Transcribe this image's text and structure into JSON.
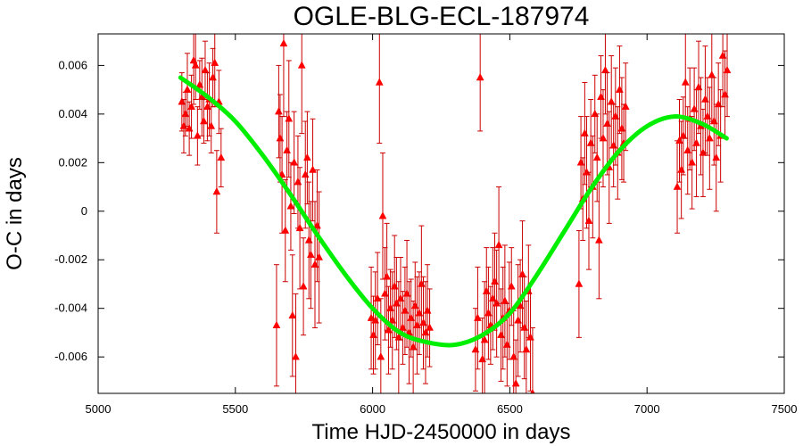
{
  "chart_data": {
    "type": "scatter",
    "title": "OGLE-BLG-ECL-187974",
    "xlabel": "Time HJD-2450000 in days",
    "ylabel": "O-C in days",
    "xlim": [
      5000,
      7500
    ],
    "ylim": [
      -0.0075,
      0.0073
    ],
    "x_ticks": [
      5000,
      5500,
      6000,
      6500,
      7000,
      7500
    ],
    "x_tick_labels": [
      "5000",
      "5500",
      "6000",
      "6500",
      "7000",
      "7500"
    ],
    "y_ticks": [
      -0.006,
      -0.004,
      -0.002,
      0,
      0.002,
      0.004,
      0.006
    ],
    "y_tick_labels": [
      "-0.006",
      "-0.004",
      "-0.002",
      "0",
      "0.002",
      "0.004",
      "0.006"
    ],
    "grid": false,
    "colors": {
      "points": "#ff0000",
      "errorbars": "#cc0000",
      "fit": "#00ee00"
    },
    "series": [
      {
        "kind": "points-with-error-bars",
        "marker": "triangle",
        "points": [
          {
            "x": 5305,
            "y": 0.0045,
            "err": 0.0012
          },
          {
            "x": 5312,
            "y": 0.0035,
            "err": 0.0011
          },
          {
            "x": 5318,
            "y": 0.004,
            "err": 0.0009
          },
          {
            "x": 5325,
            "y": 0.005,
            "err": 0.0015
          },
          {
            "x": 5332,
            "y": 0.0034,
            "err": 0.0011
          },
          {
            "x": 5340,
            "y": 0.0043,
            "err": 0.0013
          },
          {
            "x": 5348,
            "y": 0.0062,
            "err": 0.0018
          },
          {
            "x": 5355,
            "y": 0.006,
            "err": 0.0014
          },
          {
            "x": 5362,
            "y": 0.0031,
            "err": 0.0012
          },
          {
            "x": 5370,
            "y": 0.0052,
            "err": 0.001
          },
          {
            "x": 5378,
            "y": 0.0047,
            "err": 0.0016
          },
          {
            "x": 5385,
            "y": 0.0037,
            "err": 0.0009
          },
          {
            "x": 5390,
            "y": 0.0058,
            "err": 0.0012
          },
          {
            "x": 5398,
            "y": 0.0043,
            "err": 0.0014
          },
          {
            "x": 5405,
            "y": 0.0046,
            "err": 0.0015
          },
          {
            "x": 5412,
            "y": 0.0035,
            "err": 0.0011
          },
          {
            "x": 5418,
            "y": 0.0055,
            "err": 0.0012
          },
          {
            "x": 5425,
            "y": 0.0061,
            "err": 0.0018
          },
          {
            "x": 5432,
            "y": 0.0008,
            "err": 0.0017
          },
          {
            "x": 5440,
            "y": 0.0045,
            "err": 0.0013
          },
          {
            "x": 5448,
            "y": 0.0022,
            "err": 0.0012
          },
          {
            "x": 5650,
            "y": -0.0047,
            "err": 0.0025
          },
          {
            "x": 5658,
            "y": 0.0041,
            "err": 0.0019
          },
          {
            "x": 5663,
            "y": 0.003,
            "err": 0.0018
          },
          {
            "x": 5670,
            "y": 0.0015,
            "err": 0.0024
          },
          {
            "x": 5676,
            "y": 0.0069,
            "err": 0.003
          },
          {
            "x": 5682,
            "y": -0.0008,
            "err": 0.0021
          },
          {
            "x": 5688,
            "y": 0.0025,
            "err": 0.0016
          },
          {
            "x": 5695,
            "y": 0.0038,
            "err": 0.0024
          },
          {
            "x": 5702,
            "y": 0.0002,
            "err": 0.0018
          },
          {
            "x": 5708,
            "y": -0.0043,
            "err": 0.0025
          },
          {
            "x": 5714,
            "y": 0.002,
            "err": 0.0021
          },
          {
            "x": 5720,
            "y": -0.006,
            "err": 0.0026
          },
          {
            "x": 5728,
            "y": 0.0012,
            "err": 0.0019
          },
          {
            "x": 5735,
            "y": -0.0007,
            "err": 0.0025
          },
          {
            "x": 5742,
            "y": 0.006,
            "err": 0.0028
          },
          {
            "x": 5748,
            "y": -0.0031,
            "err": 0.002
          },
          {
            "x": 5755,
            "y": 0.0015,
            "err": 0.0022
          },
          {
            "x": 5762,
            "y": 0.0022,
            "err": 0.0019
          },
          {
            "x": 5768,
            "y": -0.0012,
            "err": 0.0024
          },
          {
            "x": 5775,
            "y": -0.0018,
            "err": 0.0022
          },
          {
            "x": 5782,
            "y": 0.0017,
            "err": 0.0021
          },
          {
            "x": 5790,
            "y": -0.0022,
            "err": 0.0026
          },
          {
            "x": 5798,
            "y": -0.0006,
            "err": 0.0023
          },
          {
            "x": 5805,
            "y": -0.0019,
            "err": 0.0027
          },
          {
            "x": 5995,
            "y": -0.0044,
            "err": 0.0021
          },
          {
            "x": 6003,
            "y": -0.0051,
            "err": 0.0016
          },
          {
            "x": 6010,
            "y": -0.0045,
            "err": 0.002
          },
          {
            "x": 6018,
            "y": -0.0036,
            "err": 0.0019
          },
          {
            "x": 6025,
            "y": 0.0053,
            "err": 0.0025
          },
          {
            "x": 6030,
            "y": -0.006,
            "err": 0.0024
          },
          {
            "x": 6037,
            "y": -0.0002,
            "err": 0.0026
          },
          {
            "x": 6045,
            "y": -0.0034,
            "err": 0.0019
          },
          {
            "x": 6052,
            "y": -0.0027,
            "err": 0.0022
          },
          {
            "x": 6058,
            "y": -0.0049,
            "err": 0.0018
          },
          {
            "x": 6065,
            "y": -0.004,
            "err": 0.0016
          },
          {
            "x": 6072,
            "y": -0.0045,
            "err": 0.002
          },
          {
            "x": 6080,
            "y": -0.0031,
            "err": 0.0021
          },
          {
            "x": 6087,
            "y": -0.0038,
            "err": 0.0019
          },
          {
            "x": 6095,
            "y": -0.0052,
            "err": 0.0023
          },
          {
            "x": 6102,
            "y": -0.0036,
            "err": 0.0017
          },
          {
            "x": 6110,
            "y": -0.0048,
            "err": 0.0015
          },
          {
            "x": 6118,
            "y": -0.0041,
            "err": 0.0018
          },
          {
            "x": 6125,
            "y": -0.0034,
            "err": 0.0022
          },
          {
            "x": 6133,
            "y": -0.005,
            "err": 0.0021
          },
          {
            "x": 6140,
            "y": -0.0044,
            "err": 0.0016
          },
          {
            "x": 6148,
            "y": -0.0056,
            "err": 0.0019
          },
          {
            "x": 6155,
            "y": -0.0039,
            "err": 0.0018
          },
          {
            "x": 6162,
            "y": -0.0047,
            "err": 0.002
          },
          {
            "x": 6170,
            "y": -0.0042,
            "err": 0.0017
          },
          {
            "x": 6178,
            "y": -0.003,
            "err": 0.0024
          },
          {
            "x": 6185,
            "y": -0.0046,
            "err": 0.0019
          },
          {
            "x": 6193,
            "y": -0.005,
            "err": 0.0021
          },
          {
            "x": 6200,
            "y": -0.0041,
            "err": 0.0019
          },
          {
            "x": 6208,
            "y": -0.0048,
            "err": 0.0016
          },
          {
            "x": 6375,
            "y": -0.0057,
            "err": 0.0017
          },
          {
            "x": 6383,
            "y": -0.0044,
            "err": 0.0021
          },
          {
            "x": 6392,
            "y": 0.0055,
            "err": 0.0022
          },
          {
            "x": 6400,
            "y": -0.0061,
            "err": 0.0017
          },
          {
            "x": 6408,
            "y": -0.0053,
            "err": 0.0024
          },
          {
            "x": 6415,
            "y": -0.0033,
            "err": 0.0018
          },
          {
            "x": 6422,
            "y": -0.0042,
            "err": 0.0019
          },
          {
            "x": 6430,
            "y": -0.0047,
            "err": 0.0016
          },
          {
            "x": 6438,
            "y": -0.0036,
            "err": 0.0021
          },
          {
            "x": 6445,
            "y": -0.0029,
            "err": 0.002
          },
          {
            "x": 6452,
            "y": -0.0038,
            "err": 0.0022
          },
          {
            "x": 6460,
            "y": -0.0014,
            "err": 0.0024
          },
          {
            "x": 6468,
            "y": -0.0051,
            "err": 0.0019
          },
          {
            "x": 6475,
            "y": -0.0044,
            "err": 0.0021
          },
          {
            "x": 6482,
            "y": -0.0037,
            "err": 0.0023
          },
          {
            "x": 6490,
            "y": -0.0055,
            "err": 0.0017
          },
          {
            "x": 6498,
            "y": -0.0041,
            "err": 0.002
          },
          {
            "x": 6506,
            "y": -0.0031,
            "err": 0.0016
          },
          {
            "x": 6514,
            "y": -0.006,
            "err": 0.0019
          },
          {
            "x": 6522,
            "y": -0.0071,
            "err": 0.0018
          },
          {
            "x": 6530,
            "y": -0.0045,
            "err": 0.0023
          },
          {
            "x": 6538,
            "y": -0.0039,
            "err": 0.0019
          },
          {
            "x": 6546,
            "y": -0.0026,
            "err": 0.0022
          },
          {
            "x": 6553,
            "y": -0.0048,
            "err": 0.0021
          },
          {
            "x": 6560,
            "y": -0.0057,
            "err": 0.002
          },
          {
            "x": 6568,
            "y": -0.0033,
            "err": 0.0019
          },
          {
            "x": 6575,
            "y": -0.0052,
            "err": 0.0022
          },
          {
            "x": 6583,
            "y": -0.0075,
            "err": 0.0027
          },
          {
            "x": 6752,
            "y": -0.003,
            "err": 0.0022
          },
          {
            "x": 6759,
            "y": 0.002,
            "err": 0.0019
          },
          {
            "x": 6766,
            "y": 0.0005,
            "err": 0.0017
          },
          {
            "x": 6773,
            "y": 0.0032,
            "err": 0.0021
          },
          {
            "x": 6780,
            "y": 0.0016,
            "err": 0.0023
          },
          {
            "x": 6788,
            "y": -0.0004,
            "err": 0.002
          },
          {
            "x": 6795,
            "y": 0.0028,
            "err": 0.0018
          },
          {
            "x": 6802,
            "y": 0.001,
            "err": 0.0021
          },
          {
            "x": 6810,
            "y": 0.004,
            "err": 0.0016
          },
          {
            "x": 6818,
            "y": 0.0022,
            "err": 0.0018
          },
          {
            "x": 6825,
            "y": -0.0012,
            "err": 0.0024
          },
          {
            "x": 6832,
            "y": 0.0047,
            "err": 0.0017
          },
          {
            "x": 6840,
            "y": 0.003,
            "err": 0.002
          },
          {
            "x": 6848,
            "y": 0.0058,
            "err": 0.0018
          },
          {
            "x": 6855,
            "y": 0.0036,
            "err": 0.0021
          },
          {
            "x": 6862,
            "y": 0.0018,
            "err": 0.0023
          },
          {
            "x": 6870,
            "y": 0.0045,
            "err": 0.0019
          },
          {
            "x": 6878,
            "y": 0.0027,
            "err": 0.0017
          },
          {
            "x": 6885,
            "y": 0.0039,
            "err": 0.002
          },
          {
            "x": 6893,
            "y": 0.0024,
            "err": 0.0019
          },
          {
            "x": 6900,
            "y": 0.005,
            "err": 0.0018
          },
          {
            "x": 6908,
            "y": 0.0034,
            "err": 0.0021
          },
          {
            "x": 6915,
            "y": 0.0028,
            "err": 0.0016
          },
          {
            "x": 6922,
            "y": 0.0043,
            "err": 0.0018
          },
          {
            "x": 7110,
            "y": 0.001,
            "err": 0.0019
          },
          {
            "x": 7118,
            "y": 0.0029,
            "err": 0.0017
          },
          {
            "x": 7125,
            "y": 0.0017,
            "err": 0.002
          },
          {
            "x": 7132,
            "y": 0.0031,
            "err": 0.0016
          },
          {
            "x": 7140,
            "y": 0.0053,
            "err": 0.0023
          },
          {
            "x": 7148,
            "y": 0.0025,
            "err": 0.0018
          },
          {
            "x": 7156,
            "y": 0.0038,
            "err": 0.0021
          },
          {
            "x": 7164,
            "y": 0.002,
            "err": 0.0019
          },
          {
            "x": 7172,
            "y": 0.0042,
            "err": 0.0017
          },
          {
            "x": 7180,
            "y": 0.0028,
            "err": 0.0022
          },
          {
            "x": 7188,
            "y": 0.0051,
            "err": 0.0019
          },
          {
            "x": 7196,
            "y": 0.0035,
            "err": 0.002
          },
          {
            "x": 7204,
            "y": 0.0024,
            "err": 0.0018
          },
          {
            "x": 7212,
            "y": 0.0046,
            "err": 0.0022
          },
          {
            "x": 7220,
            "y": 0.0039,
            "err": 0.0016
          },
          {
            "x": 7228,
            "y": 0.003,
            "err": 0.0021
          },
          {
            "x": 7236,
            "y": 0.0056,
            "err": 0.0019
          },
          {
            "x": 7244,
            "y": 0.0037,
            "err": 0.0018
          },
          {
            "x": 7252,
            "y": 0.0022,
            "err": 0.0022
          },
          {
            "x": 7260,
            "y": 0.0044,
            "err": 0.0017
          },
          {
            "x": 7268,
            "y": 0.0031,
            "err": 0.0019
          },
          {
            "x": 7276,
            "y": 0.0064,
            "err": 0.0021
          },
          {
            "x": 7284,
            "y": 0.0048,
            "err": 0.0018
          },
          {
            "x": 7292,
            "y": 0.0058,
            "err": 0.0019
          }
        ]
      },
      {
        "kind": "fit-line",
        "points": [
          {
            "x": 5300,
            "y": 0.0055
          },
          {
            "x": 5400,
            "y": 0.0047
          },
          {
            "x": 5500,
            "y": 0.0037
          },
          {
            "x": 5600,
            "y": 0.0023
          },
          {
            "x": 5700,
            "y": 0.0007
          },
          {
            "x": 5800,
            "y": -0.001
          },
          {
            "x": 5900,
            "y": -0.0026
          },
          {
            "x": 6000,
            "y": -0.004
          },
          {
            "x": 6100,
            "y": -0.005
          },
          {
            "x": 6200,
            "y": -0.0054
          },
          {
            "x": 6300,
            "y": -0.0055
          },
          {
            "x": 6400,
            "y": -0.0051
          },
          {
            "x": 6500,
            "y": -0.0042
          },
          {
            "x": 6600,
            "y": -0.0026
          },
          {
            "x": 6700,
            "y": -0.0008
          },
          {
            "x": 6800,
            "y": 0.001
          },
          {
            "x": 6900,
            "y": 0.0025
          },
          {
            "x": 7000,
            "y": 0.0035
          },
          {
            "x": 7100,
            "y": 0.0039
          },
          {
            "x": 7200,
            "y": 0.0036
          },
          {
            "x": 7290,
            "y": 0.003
          }
        ]
      }
    ]
  }
}
